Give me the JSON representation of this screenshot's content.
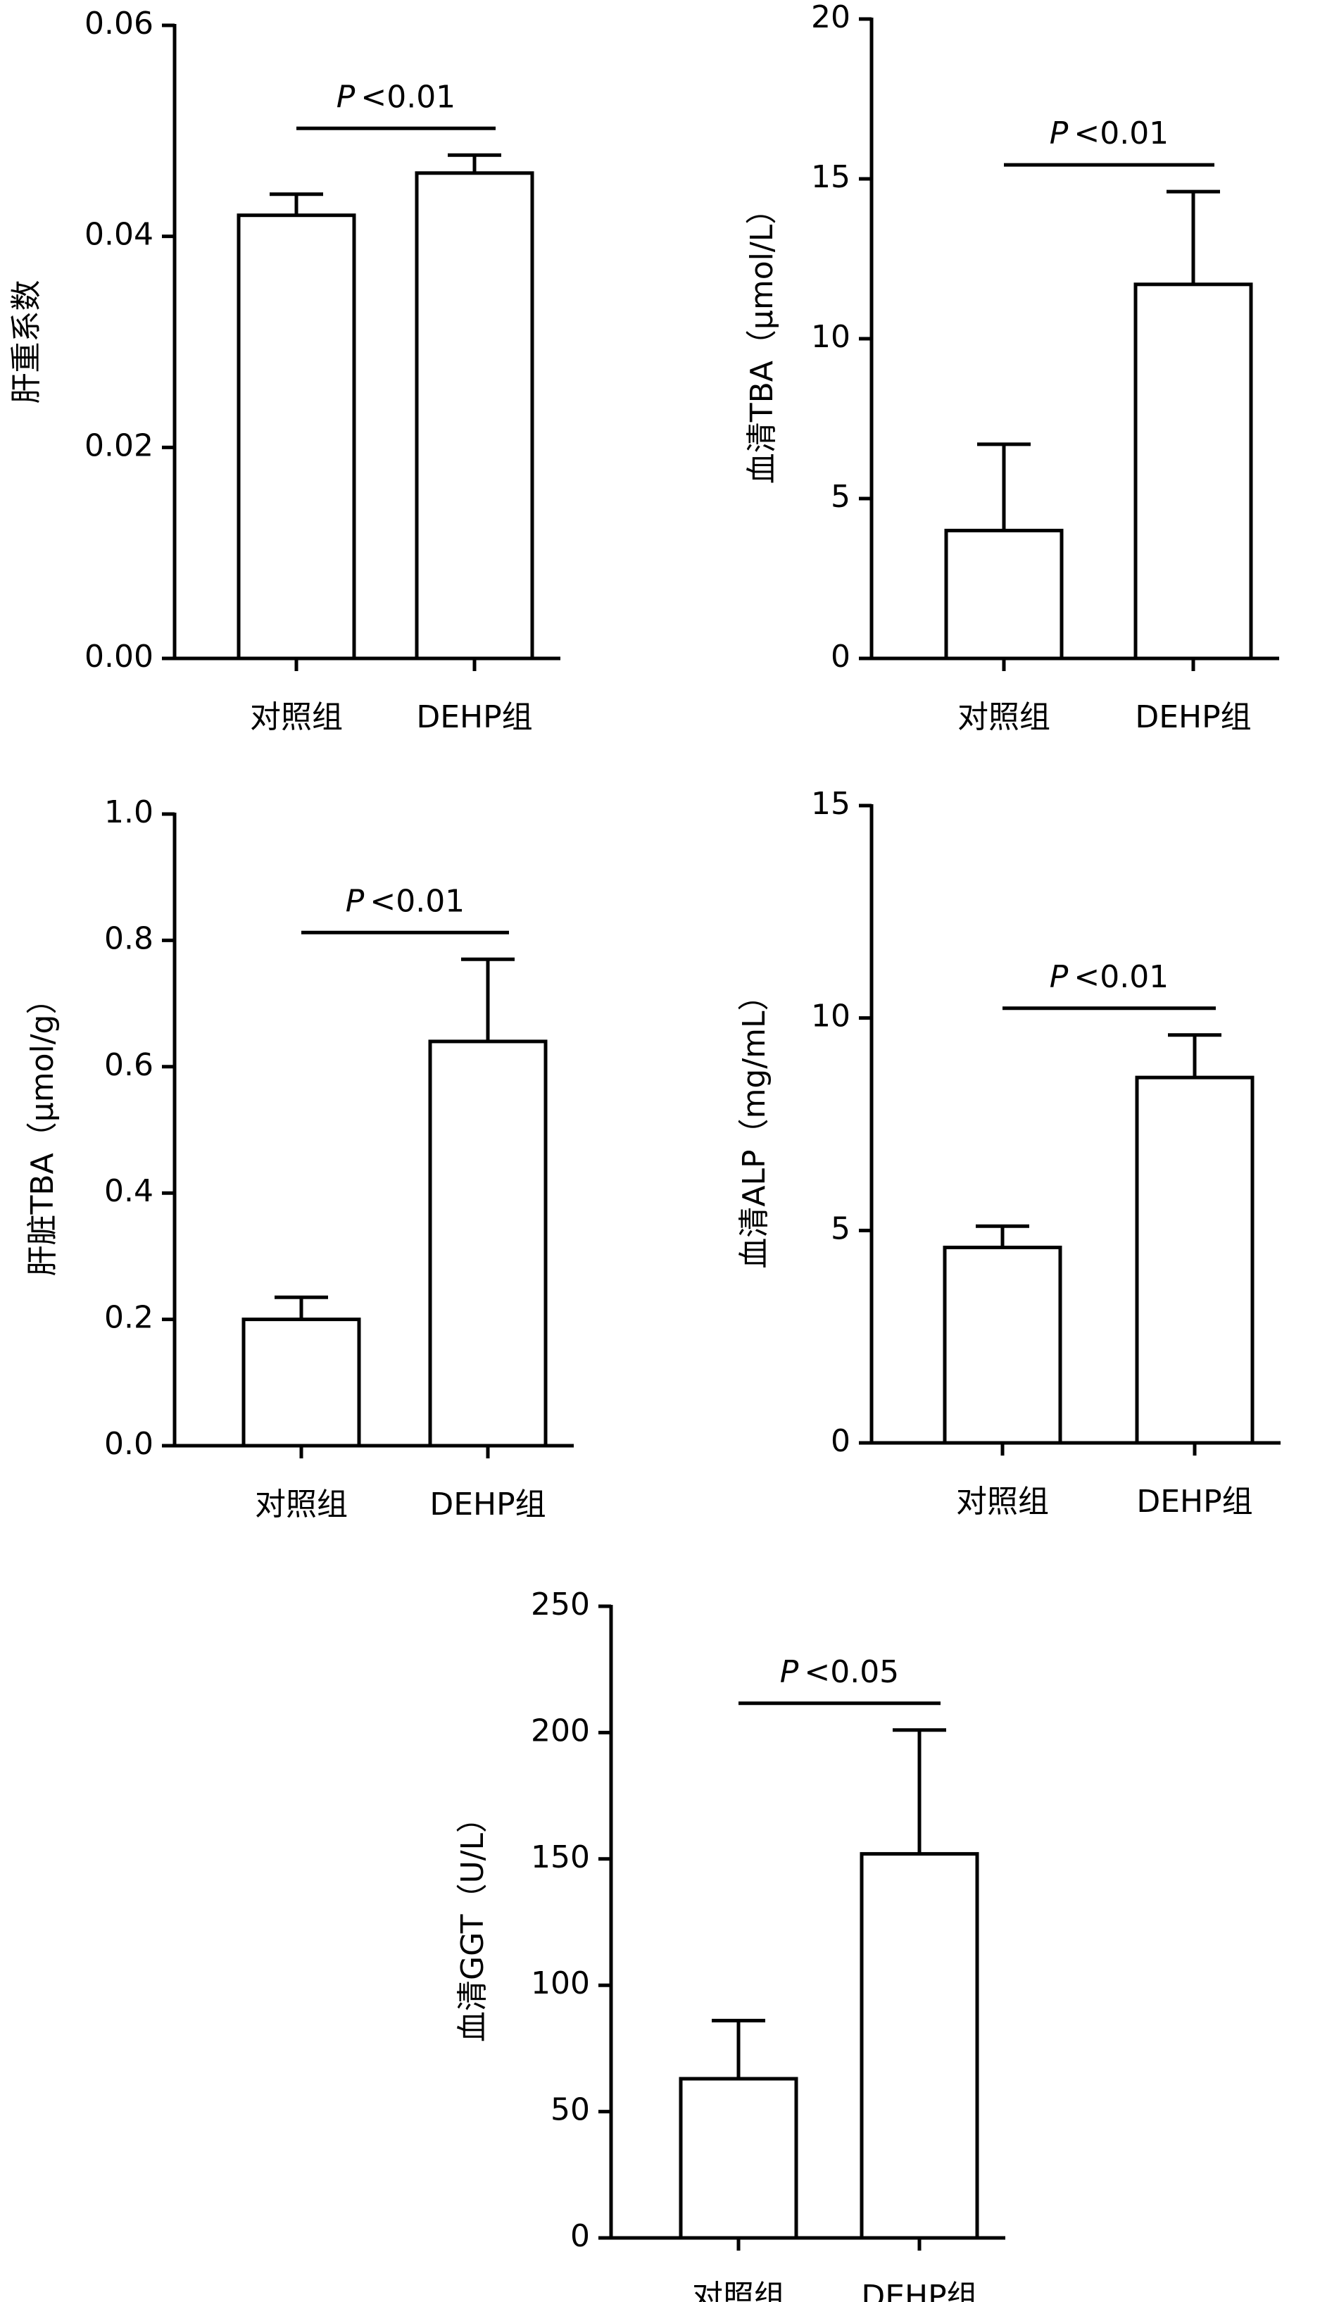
{
  "chart_data": [
    {
      "type": "bar",
      "ylabel": "肝重系数",
      "categories": [
        "对照组",
        "DEHP组"
      ],
      "values": [
        0.042,
        0.046
      ],
      "errors": [
        0.002,
        0.0017
      ],
      "ylim": [
        0,
        0.06
      ],
      "yticks": [
        {
          "value": 0,
          "label": "0.00"
        },
        0.02,
        0.04,
        0.06
      ],
      "significance": {
        "symbol": "P",
        "text": "<0.01"
      }
    },
    {
      "type": "bar",
      "ylabel": "血清TBA（μmol/L）",
      "categories": [
        "对照组",
        "DEHP组"
      ],
      "values": [
        4.0,
        11.7
      ],
      "errors": [
        2.7,
        2.9
      ],
      "ylim": [
        0,
        20
      ],
      "yticks": [
        0,
        5,
        10,
        15,
        20
      ],
      "significance": {
        "symbol": "P",
        "text": "<0.01"
      }
    },
    {
      "type": "bar",
      "ylabel": "肝脏TBA（μmol/g）",
      "categories": [
        "对照组",
        "DEHP组"
      ],
      "values": [
        0.2,
        0.64
      ],
      "errors": [
        0.035,
        0.13
      ],
      "ylim": [
        0,
        1
      ],
      "yticks": [
        {
          "value": 0,
          "label": "0.0"
        },
        0.2,
        0.4,
        0.6,
        0.8,
        {
          "value": 1,
          "label": "1.0"
        }
      ],
      "significance": {
        "symbol": "P",
        "text": "<0.01"
      }
    },
    {
      "type": "bar",
      "ylabel": "血清ALP（mg/mL）",
      "categories": [
        "对照组",
        "DEHP组"
      ],
      "values": [
        4.6,
        8.6
      ],
      "errors": [
        0.5,
        1.0
      ],
      "ylim": [
        0,
        15
      ],
      "yticks": [
        0,
        5,
        10,
        15
      ],
      "significance": {
        "symbol": "P",
        "text": "<0.01"
      }
    },
    {
      "type": "bar",
      "ylabel": "血清GGT（U/L）",
      "categories": [
        "对照组",
        "DEHP组"
      ],
      "values": [
        63,
        152
      ],
      "errors": [
        23,
        49
      ],
      "ylim": [
        0,
        250
      ],
      "yticks": [
        0,
        50,
        100,
        150,
        200,
        250
      ],
      "significance": {
        "symbol": "P",
        "text": "<0.05"
      }
    }
  ]
}
